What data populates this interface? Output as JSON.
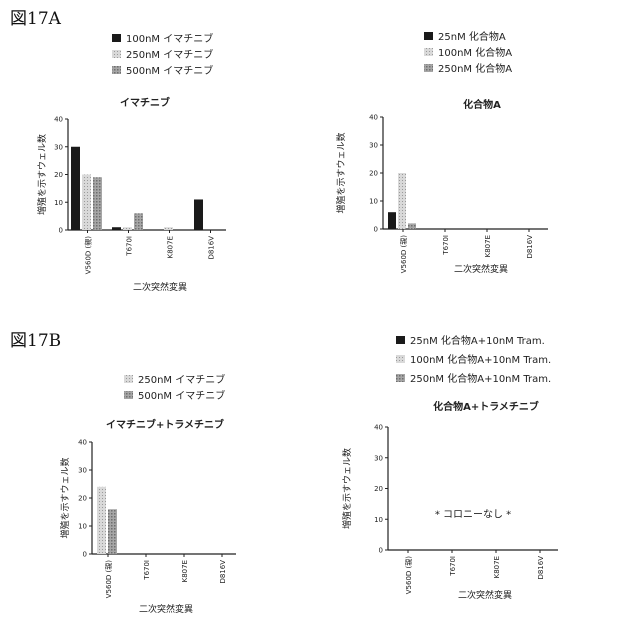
{
  "figure_labels": {
    "a": "図17A",
    "b": "図17B"
  },
  "colors": {
    "dark": "#1a1a1a",
    "mid": "#c8c8c8",
    "light": "#8e8e8e",
    "axis": "#222222"
  },
  "chart_data": [
    {
      "id": "A1",
      "type": "bar",
      "title": "イマチニブ",
      "legend": [
        "100nM  イマチニブ",
        "250nM  イマチニブ",
        "500nM  イマチニブ"
      ],
      "ylabel": "増殖を示すウェル数",
      "xlabel": "二次突然変異",
      "categories": [
        "V560D (親)",
        "T670I",
        "K807E",
        "D816V"
      ],
      "ylim": [
        0,
        40
      ],
      "yticks": [
        "0",
        "10",
        "20",
        "30",
        "40"
      ],
      "series": [
        {
          "name": "100nM  イマチニブ",
          "values": [
            30,
            1,
            0,
            11
          ]
        },
        {
          "name": "250nM  イマチニブ",
          "values": [
            20,
            1,
            1,
            0
          ]
        },
        {
          "name": "500nM  イマチニブ",
          "values": [
            19,
            6,
            0,
            0
          ]
        }
      ]
    },
    {
      "id": "A2",
      "type": "bar",
      "title": "化合物A",
      "legend": [
        "25nM  化合物A",
        "100nM  化合物A",
        "250nM  化合物A"
      ],
      "ylabel": "増殖を示すウェル数",
      "xlabel": "二次突然変異",
      "categories": [
        "V560D (親)",
        "T670I",
        "K807E",
        "D816V"
      ],
      "ylim": [
        0,
        40
      ],
      "yticks": [
        "0",
        "10",
        "20",
        "30",
        "40"
      ],
      "series": [
        {
          "name": "25nM  化合物A",
          "values": [
            6,
            0,
            0,
            0
          ]
        },
        {
          "name": "100nM  化合物A",
          "values": [
            20,
            0,
            0,
            0
          ]
        },
        {
          "name": "250nM  化合物A",
          "values": [
            2,
            0,
            0,
            0
          ]
        }
      ]
    },
    {
      "id": "B1",
      "type": "bar",
      "title": "イマチニブ+トラメチニブ",
      "legend": [
        "250nM  イマチニブ",
        "500nM  イマチニブ"
      ],
      "ylabel": "増殖を示すウェル数",
      "xlabel": "二次突然変異",
      "categories": [
        "V560D (親)",
        "T670I",
        "K807E",
        "D816V"
      ],
      "ylim": [
        0,
        40
      ],
      "yticks": [
        "0",
        "10",
        "20",
        "30",
        "40"
      ],
      "series": [
        {
          "name": "250nM  イマチニブ",
          "values": [
            24,
            0,
            0,
            0
          ]
        },
        {
          "name": "500nM  イマチニブ",
          "values": [
            16,
            0,
            0,
            0
          ]
        }
      ]
    },
    {
      "id": "B2",
      "type": "bar",
      "title": "化合物A+トラメチニブ",
      "legend": [
        "25nM  化合物A+10nM  Tram.",
        "100nM  化合物A+10nM  Tram.",
        "250nM  化合物A+10nM  Tram."
      ],
      "ylabel": "増殖を示すウェル数",
      "xlabel": "二次突然変異",
      "categories": [
        "V560D (親)",
        "T670I",
        "K807E",
        "D816V"
      ],
      "ylim": [
        0,
        40
      ],
      "yticks": [
        "0",
        "10",
        "20",
        "30",
        "40"
      ],
      "annotation": "* コロニーなし *",
      "series": [
        {
          "name": "25nM  化合物A+10nM  Tram.",
          "values": [
            0,
            0,
            0,
            0
          ]
        },
        {
          "name": "100nM  化合物A+10nM  Tram.",
          "values": [
            0,
            0,
            0,
            0
          ]
        },
        {
          "name": "250nM  化合物A+10nM  Tram.",
          "values": [
            0,
            0,
            0,
            0
          ]
        }
      ]
    }
  ]
}
